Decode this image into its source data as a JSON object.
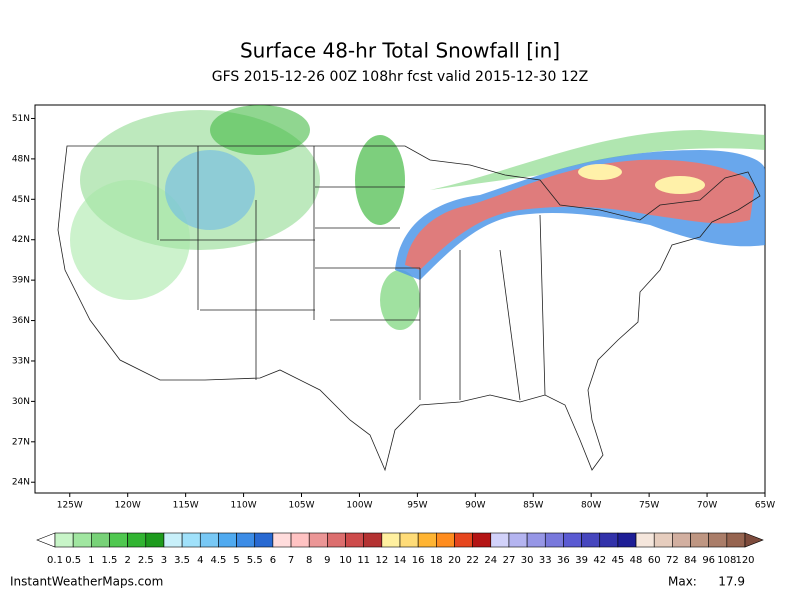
{
  "chart_data": {
    "type": "map",
    "title": "Surface 48-hr Total Snowfall [in]",
    "subtitle": "GFS 2015-12-26 00Z 108hr fcst valid 2015-12-30 12Z",
    "xlim": [
      -128,
      -65
    ],
    "ylim": [
      23.2,
      52
    ],
    "yticks": [
      {
        "value": 51,
        "label": "51N"
      },
      {
        "value": 48,
        "label": "48N"
      },
      {
        "value": 45,
        "label": "45N"
      },
      {
        "value": 42,
        "label": "42N"
      },
      {
        "value": 39,
        "label": "39N"
      },
      {
        "value": 36,
        "label": "36N"
      },
      {
        "value": 33,
        "label": "33N"
      },
      {
        "value": 30,
        "label": "30N"
      },
      {
        "value": 27,
        "label": "27N"
      },
      {
        "value": 24,
        "label": "24N"
      }
    ],
    "xticks": [
      {
        "value": -125,
        "label": "125W"
      },
      {
        "value": -120,
        "label": "120W"
      },
      {
        "value": -115,
        "label": "115W"
      },
      {
        "value": -110,
        "label": "110W"
      },
      {
        "value": -105,
        "label": "105W"
      },
      {
        "value": -100,
        "label": "100W"
      },
      {
        "value": -95,
        "label": "95W"
      },
      {
        "value": -90,
        "label": "90W"
      },
      {
        "value": -85,
        "label": "85W"
      },
      {
        "value": -80,
        "label": "80W"
      },
      {
        "value": -75,
        "label": "75W"
      },
      {
        "value": -70,
        "label": "70W"
      },
      {
        "value": -65,
        "label": "65W"
      }
    ],
    "colorbar": {
      "levels": [
        0.1,
        0.5,
        1,
        1.5,
        2,
        2.5,
        3,
        3.5,
        4,
        4.5,
        5,
        5.5,
        6,
        7,
        8,
        9,
        10,
        11,
        12,
        14,
        16,
        18,
        20,
        22,
        24,
        27,
        30,
        33,
        36,
        39,
        42,
        45,
        48,
        60,
        72,
        84,
        96,
        108,
        120
      ],
      "colors": [
        "#ffffff",
        "#c8f5c8",
        "#a0e6a0",
        "#78d278",
        "#50c850",
        "#32b432",
        "#1e9b1e",
        "#c8f0fa",
        "#a0e1fa",
        "#78c8f5",
        "#50aaf0",
        "#3c8ce6",
        "#2869d2",
        "#ffdcdc",
        "#ffc3c3",
        "#eb9696",
        "#dc6e6e",
        "#cd4b4b",
        "#b43232",
        "#fff0a0",
        "#ffdc78",
        "#ffb432",
        "#ff8c1e",
        "#e6461e",
        "#b41414",
        "#d2d2fa",
        "#b4b4f0",
        "#9696e6",
        "#7878dc",
        "#5a5ad2",
        "#4646be",
        "#3232aa",
        "#1e1e96",
        "#f5e6dc",
        "#e6cdbe",
        "#d2afa0",
        "#be9682",
        "#aa7d69",
        "#966450",
        "#7d4b3c"
      ]
    },
    "source": "InstantWeatherMaps.com",
    "max_label": "Max:",
    "max_value": 17.9
  }
}
